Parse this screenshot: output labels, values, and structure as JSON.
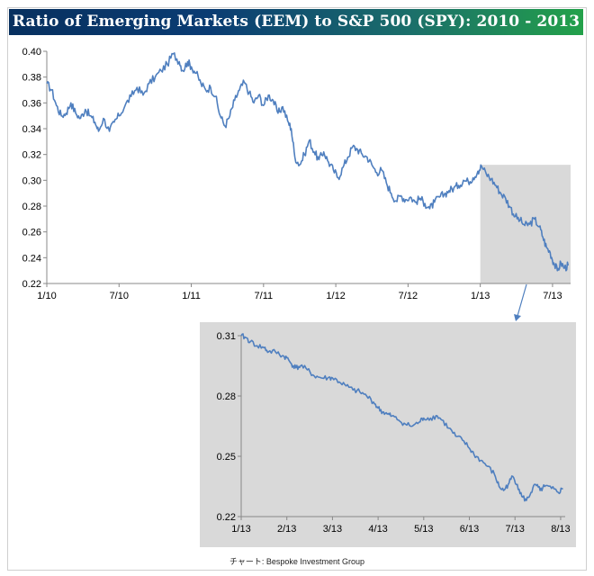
{
  "header": {
    "title": "Ratio of Emerging Markets (EEM) to S&P 500 (SPY): 2010 - 2013"
  },
  "source": "チャート: Bespoke Investment Group",
  "colors": {
    "line": "#4f7fbf",
    "highlight": "#d9d9d9",
    "arrow": "#4f7fbf"
  },
  "chart_data": [
    {
      "type": "line",
      "name": "main",
      "series_name": "EEM/SPY ratio",
      "x_unit": "months since Jan 2010",
      "xlim": [
        0,
        43.5
      ],
      "ylim": [
        0.22,
        0.4
      ],
      "yticks": [
        "0.40",
        "0.38",
        "0.36",
        "0.34",
        "0.32",
        "0.30",
        "0.28",
        "0.26",
        "0.24",
        "0.22"
      ],
      "ytick_values": [
        0.4,
        0.38,
        0.36,
        0.34,
        0.32,
        0.3,
        0.28,
        0.26,
        0.24,
        0.22
      ],
      "xticks": [
        "1/10",
        "7/10",
        "1/11",
        "7/11",
        "1/12",
        "7/12",
        "1/13",
        "7/13"
      ],
      "xtick_values": [
        0,
        6,
        12,
        18,
        24,
        30,
        36,
        42
      ],
      "highlight_range": {
        "x": [
          36,
          43.5
        ],
        "y": [
          0.22,
          0.312
        ]
      },
      "points": [
        [
          0,
          0.375
        ],
        [
          0.4,
          0.37
        ],
        [
          0.8,
          0.358
        ],
        [
          1.2,
          0.35
        ],
        [
          1.6,
          0.352
        ],
        [
          2,
          0.36
        ],
        [
          2.4,
          0.352
        ],
        [
          2.8,
          0.348
        ],
        [
          3.2,
          0.355
        ],
        [
          3.6,
          0.35
        ],
        [
          4,
          0.345
        ],
        [
          4.3,
          0.338
        ],
        [
          4.7,
          0.348
        ],
        [
          5.2,
          0.338
        ],
        [
          5.6,
          0.345
        ],
        [
          6,
          0.35
        ],
        [
          6.5,
          0.358
        ],
        [
          7,
          0.365
        ],
        [
          7.5,
          0.372
        ],
        [
          8,
          0.366
        ],
        [
          8.5,
          0.375
        ],
        [
          9,
          0.38
        ],
        [
          9.5,
          0.385
        ],
        [
          10,
          0.39
        ],
        [
          10.5,
          0.398
        ],
        [
          11,
          0.392
        ],
        [
          11.3,
          0.385
        ],
        [
          11.7,
          0.392
        ],
        [
          12,
          0.388
        ],
        [
          12.4,
          0.383
        ],
        [
          12.8,
          0.375
        ],
        [
          13.2,
          0.37
        ],
        [
          13.6,
          0.372
        ],
        [
          14,
          0.365
        ],
        [
          14.4,
          0.35
        ],
        [
          14.8,
          0.342
        ],
        [
          15.2,
          0.35
        ],
        [
          15.6,
          0.362
        ],
        [
          16,
          0.37
        ],
        [
          16.4,
          0.376
        ],
        [
          16.8,
          0.368
        ],
        [
          17.2,
          0.36
        ],
        [
          17.6,
          0.366
        ],
        [
          18,
          0.358
        ],
        [
          18.4,
          0.366
        ],
        [
          18.8,
          0.362
        ],
        [
          19.2,
          0.352
        ],
        [
          19.6,
          0.357
        ],
        [
          20,
          0.346
        ],
        [
          20.3,
          0.34
        ],
        [
          20.6,
          0.318
        ],
        [
          21,
          0.312
        ],
        [
          21.4,
          0.32
        ],
        [
          21.8,
          0.331
        ],
        [
          22.2,
          0.322
        ],
        [
          22.6,
          0.316
        ],
        [
          23,
          0.322
        ],
        [
          23.4,
          0.314
        ],
        [
          23.8,
          0.308
        ],
        [
          24.2,
          0.302
        ],
        [
          24.6,
          0.31
        ],
        [
          25,
          0.318
        ],
        [
          25.4,
          0.326
        ],
        [
          25.8,
          0.324
        ],
        [
          26.2,
          0.32
        ],
        [
          26.6,
          0.318
        ],
        [
          27,
          0.312
        ],
        [
          27.4,
          0.306
        ],
        [
          27.8,
          0.308
        ],
        [
          28.2,
          0.298
        ],
        [
          28.6,
          0.29
        ],
        [
          29,
          0.284
        ],
        [
          29.4,
          0.288
        ],
        [
          29.8,
          0.285
        ],
        [
          30.2,
          0.287
        ],
        [
          30.6,
          0.283
        ],
        [
          31,
          0.286
        ],
        [
          31.4,
          0.282
        ],
        [
          31.8,
          0.278
        ],
        [
          32.2,
          0.283
        ],
        [
          32.6,
          0.287
        ],
        [
          33,
          0.289
        ],
        [
          33.4,
          0.292
        ],
        [
          33.8,
          0.294
        ],
        [
          34.2,
          0.296
        ],
        [
          34.6,
          0.3
        ],
        [
          35,
          0.299
        ],
        [
          35.4,
          0.302
        ],
        [
          35.8,
          0.307
        ],
        [
          36.1,
          0.311
        ],
        [
          36.5,
          0.305
        ],
        [
          36.9,
          0.301
        ],
        [
          37.3,
          0.296
        ],
        [
          37.7,
          0.29
        ],
        [
          38.1,
          0.286
        ],
        [
          38.5,
          0.279
        ],
        [
          38.9,
          0.272
        ],
        [
          39.3,
          0.269
        ],
        [
          39.7,
          0.265
        ],
        [
          40.1,
          0.266
        ],
        [
          40.5,
          0.27
        ],
        [
          40.9,
          0.264
        ],
        [
          41.2,
          0.256
        ],
        [
          41.5,
          0.248
        ],
        [
          41.8,
          0.244
        ],
        [
          42.1,
          0.236
        ],
        [
          42.4,
          0.23
        ],
        [
          42.7,
          0.236
        ],
        [
          43,
          0.232
        ],
        [
          43.3,
          0.234
        ]
      ]
    },
    {
      "type": "line",
      "name": "inset",
      "series_name": "EEM/SPY ratio (2013)",
      "x_unit": "months since Jan 2013",
      "xlim": [
        0,
        7.1
      ],
      "ylim": [
        0.22,
        0.31
      ],
      "yticks": [
        "0.31",
        "0.28",
        "0.25",
        "0.22"
      ],
      "ytick_values": [
        0.31,
        0.28,
        0.25,
        0.22
      ],
      "xticks": [
        "1/13",
        "2/13",
        "3/13",
        "4/13",
        "5/13",
        "6/13",
        "7/13",
        "8/13"
      ],
      "xtick_values": [
        0,
        1,
        2,
        3,
        4,
        5,
        6,
        7
      ],
      "points": [
        [
          0,
          0.31
        ],
        [
          0.1,
          0.309
        ],
        [
          0.2,
          0.307
        ],
        [
          0.35,
          0.305
        ],
        [
          0.5,
          0.304
        ],
        [
          0.6,
          0.302
        ],
        [
          0.75,
          0.302
        ],
        [
          0.9,
          0.3
        ],
        [
          1,
          0.299
        ],
        [
          1.1,
          0.296
        ],
        [
          1.2,
          0.294
        ],
        [
          1.3,
          0.295
        ],
        [
          1.45,
          0.293
        ],
        [
          1.6,
          0.29
        ],
        [
          1.75,
          0.289
        ],
        [
          1.9,
          0.289
        ],
        [
          2,
          0.289
        ],
        [
          2.15,
          0.287
        ],
        [
          2.3,
          0.285
        ],
        [
          2.45,
          0.283
        ],
        [
          2.6,
          0.282
        ],
        [
          2.75,
          0.28
        ],
        [
          2.9,
          0.277
        ],
        [
          3,
          0.274
        ],
        [
          3.1,
          0.272
        ],
        [
          3.2,
          0.271
        ],
        [
          3.3,
          0.27
        ],
        [
          3.45,
          0.268
        ],
        [
          3.6,
          0.266
        ],
        [
          3.75,
          0.265
        ],
        [
          3.9,
          0.267
        ],
        [
          4,
          0.269
        ],
        [
          4.15,
          0.269
        ],
        [
          4.3,
          0.27
        ],
        [
          4.4,
          0.268
        ],
        [
          4.55,
          0.264
        ],
        [
          4.7,
          0.26
        ],
        [
          4.85,
          0.258
        ],
        [
          5,
          0.254
        ],
        [
          5.1,
          0.251
        ],
        [
          5.25,
          0.248
        ],
        [
          5.4,
          0.245
        ],
        [
          5.55,
          0.241
        ],
        [
          5.65,
          0.235
        ],
        [
          5.75,
          0.233
        ],
        [
          5.85,
          0.236
        ],
        [
          5.95,
          0.24
        ],
        [
          6.05,
          0.236
        ],
        [
          6.15,
          0.23
        ],
        [
          6.25,
          0.228
        ],
        [
          6.35,
          0.232
        ],
        [
          6.45,
          0.236
        ],
        [
          6.55,
          0.233
        ],
        [
          6.65,
          0.235
        ],
        [
          6.8,
          0.234
        ],
        [
          6.95,
          0.232
        ],
        [
          7.05,
          0.234
        ]
      ]
    }
  ]
}
